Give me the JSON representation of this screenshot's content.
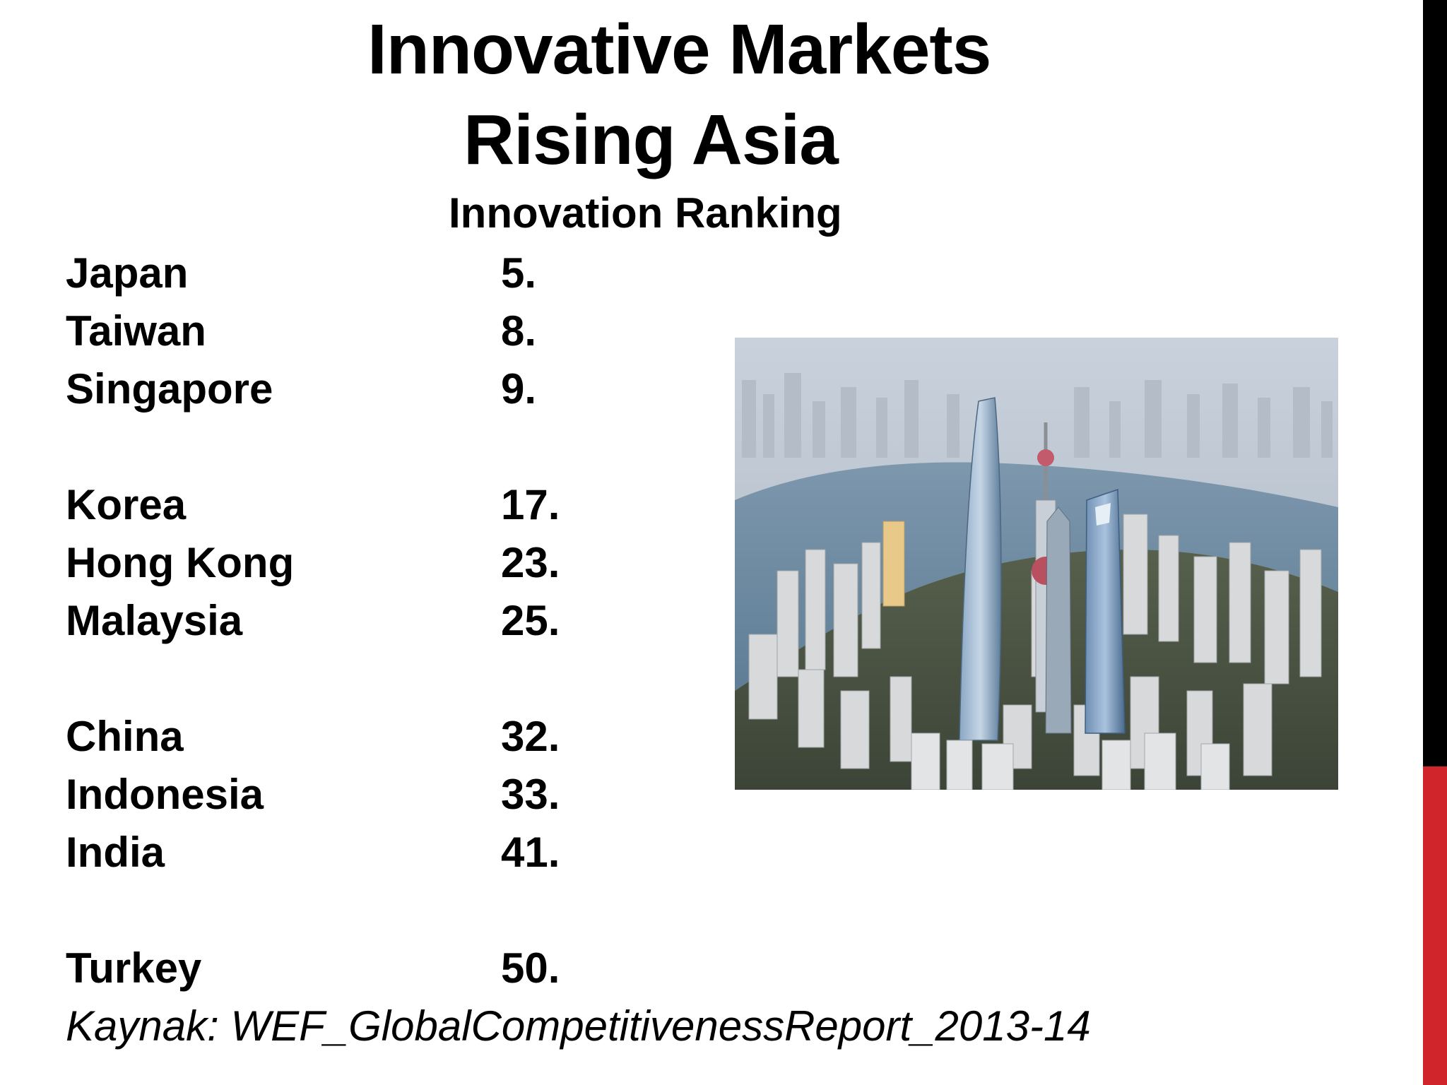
{
  "slide": {
    "title_line1": "Innovative Markets",
    "title_line2": "Rising Asia",
    "subtitle": "Innovation Ranking",
    "rankings": [
      {
        "country": "Japan",
        "rank": "5."
      },
      {
        "country": "Taiwan",
        "rank": "8."
      },
      {
        "country": "Singapore",
        "rank": "9."
      },
      {
        "country": "Korea",
        "rank": "17."
      },
      {
        "country": "Hong Kong",
        "rank": "23."
      },
      {
        "country": "Malaysia",
        "rank": "25."
      },
      {
        "country": "China",
        "rank": "32."
      },
      {
        "country": "Indonesia",
        "rank": "33."
      },
      {
        "country": "India",
        "rank": "41."
      },
      {
        "country": "Turkey",
        "rank": "50."
      }
    ],
    "source": "Kaynak: WEF_GlobalCompetitivenessReport_2013-14"
  },
  "colors": {
    "accent_red": "#d0262b",
    "edge_black": "#000000",
    "text": "#000000"
  },
  "image": {
    "subject": "aerial photo of Shanghai skyline with skyscrapers and river"
  }
}
